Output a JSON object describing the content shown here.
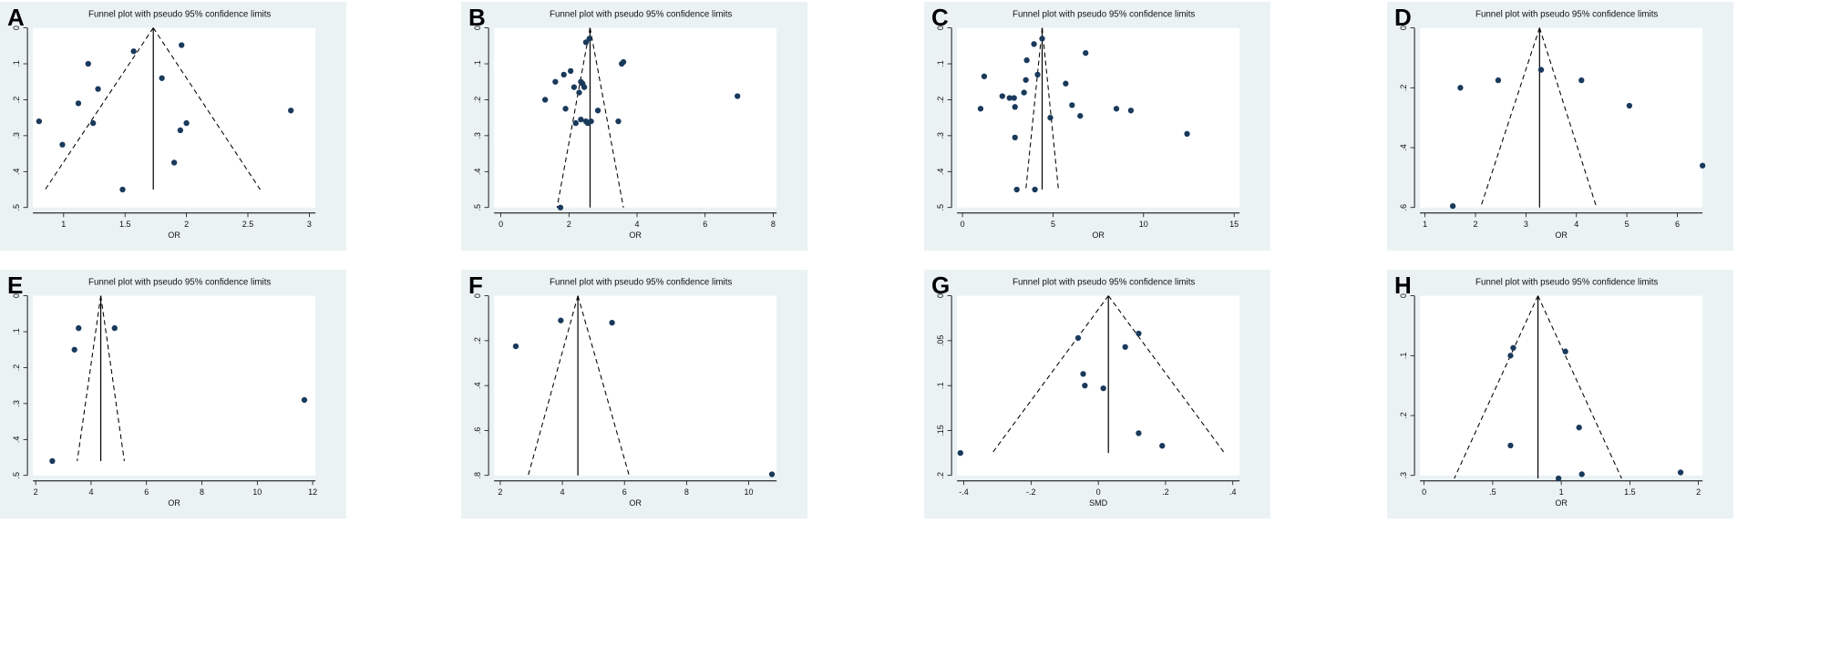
{
  "colors": {
    "panel_bg": "#eaf2f3",
    "plot_bg": "#ffffff",
    "point": "#1a3a5c",
    "line": "#000000"
  },
  "chart_data": [
    {
      "panel": "A",
      "type": "scatter",
      "title": "Funnel plot with pseudo 95% confidence limits",
      "xlabel": "OR",
      "ylabel": "",
      "xlim": [
        0.75,
        3.05
      ],
      "ylim": [
        0,
        0.5
      ],
      "y_inverted": true,
      "xticks": [
        "1",
        "1.5",
        "2",
        "2.5",
        "3"
      ],
      "xtick_values": [
        1,
        1.5,
        2,
        2.5,
        3
      ],
      "yticks": [
        "0",
        ".1",
        ".2",
        ".3",
        ".4",
        ".5"
      ],
      "ytick_values": [
        0,
        0.1,
        0.2,
        0.3,
        0.4,
        0.5
      ],
      "pooled": 1.73,
      "funnel_base_y": 0.45,
      "funnel_base_x": [
        0.85,
        2.6
      ],
      "points": [
        [
          0.8,
          0.26
        ],
        [
          0.99,
          0.325
        ],
        [
          1.12,
          0.21
        ],
        [
          1.2,
          0.1
        ],
        [
          1.24,
          0.265
        ],
        [
          1.28,
          0.17
        ],
        [
          1.48,
          0.45
        ],
        [
          1.57,
          0.065
        ],
        [
          1.8,
          0.14
        ],
        [
          1.9,
          0.375
        ],
        [
          1.95,
          0.285
        ],
        [
          1.96,
          0.048
        ],
        [
          2.0,
          0.265
        ],
        [
          2.85,
          0.23
        ]
      ]
    },
    {
      "panel": "B",
      "type": "scatter",
      "title": "Funnel plot with pseudo 95% confidence limits",
      "xlabel": "OR",
      "ylabel": "",
      "xlim": [
        -0.2,
        8.1
      ],
      "ylim": [
        0,
        0.5
      ],
      "y_inverted": true,
      "xticks": [
        "0",
        "2",
        "4",
        "6",
        "8"
      ],
      "xtick_values": [
        0,
        2,
        4,
        6,
        8
      ],
      "yticks": [
        "0",
        ".1",
        ".2",
        ".3",
        ".4",
        ".5"
      ],
      "ytick_values": [
        0,
        0.1,
        0.2,
        0.3,
        0.4,
        0.5
      ],
      "pooled": 2.62,
      "funnel_base_y": 0.5,
      "funnel_base_x": [
        1.65,
        3.6
      ],
      "points": [
        [
          1.3,
          0.2
        ],
        [
          1.6,
          0.15
        ],
        [
          1.75,
          0.5
        ],
        [
          1.85,
          0.13
        ],
        [
          1.9,
          0.225
        ],
        [
          2.05,
          0.12
        ],
        [
          2.15,
          0.165
        ],
        [
          2.2,
          0.265
        ],
        [
          2.3,
          0.18
        ],
        [
          2.35,
          0.15
        ],
        [
          2.35,
          0.255
        ],
        [
          2.4,
          0.155
        ],
        [
          2.45,
          0.165
        ],
        [
          2.5,
          0.04
        ],
        [
          2.5,
          0.26
        ],
        [
          2.55,
          0.265
        ],
        [
          2.6,
          0.03
        ],
        [
          2.65,
          0.26
        ],
        [
          2.85,
          0.23
        ],
        [
          3.45,
          0.26
        ],
        [
          3.55,
          0.1
        ],
        [
          3.6,
          0.095
        ],
        [
          6.95,
          0.19
        ]
      ]
    },
    {
      "panel": "C",
      "type": "scatter",
      "title": "Funnel plot with pseudo 95% confidence limits",
      "xlabel": "OR",
      "ylabel": "",
      "xlim": [
        -0.3,
        15.3
      ],
      "ylim": [
        0,
        0.5
      ],
      "y_inverted": true,
      "xticks": [
        "0",
        "5",
        "10",
        "15"
      ],
      "xtick_values": [
        0,
        5,
        10,
        15
      ],
      "yticks": [
        "0",
        ".1",
        ".2",
        ".3",
        ".4",
        ".5"
      ],
      "ytick_values": [
        0,
        0.1,
        0.2,
        0.3,
        0.4,
        0.5
      ],
      "pooled": 4.4,
      "funnel_base_y": 0.45,
      "funnel_base_x": [
        3.5,
        5.3
      ],
      "points": [
        [
          1.0,
          0.225
        ],
        [
          1.2,
          0.135
        ],
        [
          2.2,
          0.19
        ],
        [
          2.6,
          0.195
        ],
        [
          2.85,
          0.195
        ],
        [
          2.9,
          0.22
        ],
        [
          2.9,
          0.305
        ],
        [
          3.0,
          0.45
        ],
        [
          3.4,
          0.18
        ],
        [
          3.5,
          0.145
        ],
        [
          3.55,
          0.09
        ],
        [
          3.95,
          0.045
        ],
        [
          4.0,
          0.45
        ],
        [
          4.15,
          0.13
        ],
        [
          4.4,
          0.03
        ],
        [
          4.85,
          0.25
        ],
        [
          5.7,
          0.155
        ],
        [
          6.05,
          0.215
        ],
        [
          6.5,
          0.245
        ],
        [
          6.8,
          0.07
        ],
        [
          8.5,
          0.225
        ],
        [
          9.3,
          0.23
        ],
        [
          12.4,
          0.295
        ]
      ]
    },
    {
      "panel": "D",
      "type": "scatter",
      "title": "Funnel plot with pseudo 95% confidence limits",
      "xlabel": "OR",
      "ylabel": "",
      "xlim": [
        0.9,
        6.5
      ],
      "ylim": [
        0,
        0.6
      ],
      "y_inverted": true,
      "xticks": [
        "1",
        "2",
        "3",
        "4",
        "5",
        "6"
      ],
      "xtick_values": [
        1,
        2,
        3,
        4,
        5,
        6
      ],
      "yticks": [
        "0",
        ".2",
        ".4",
        ".6"
      ],
      "ytick_values": [
        0,
        0.2,
        0.4,
        0.6
      ],
      "pooled": 3.27,
      "funnel_base_y": 0.6,
      "funnel_base_x": [
        2.1,
        4.4
      ],
      "points": [
        [
          1.55,
          0.595
        ],
        [
          1.7,
          0.2
        ],
        [
          2.45,
          0.175
        ],
        [
          3.3,
          0.14
        ],
        [
          4.1,
          0.175
        ],
        [
          5.05,
          0.26
        ],
        [
          6.5,
          0.46
        ]
      ]
    },
    {
      "panel": "E",
      "type": "scatter",
      "title": "Funnel plot with pseudo 95% confidence limits",
      "xlabel": "OR",
      "ylabel": "",
      "xlim": [
        1.9,
        12.1
      ],
      "ylim": [
        0,
        0.5
      ],
      "y_inverted": true,
      "xticks": [
        "2",
        "4",
        "6",
        "8",
        "10",
        "12"
      ],
      "xtick_values": [
        2,
        4,
        6,
        8,
        10,
        12
      ],
      "yticks": [
        "0",
        ".1",
        ".2",
        ".3",
        ".4",
        ".5"
      ],
      "ytick_values": [
        0,
        0.1,
        0.2,
        0.3,
        0.4,
        0.5
      ],
      "pooled": 4.35,
      "funnel_base_y": 0.46,
      "funnel_base_x": [
        3.5,
        5.2
      ],
      "points": [
        [
          2.6,
          0.46
        ],
        [
          3.4,
          0.15
        ],
        [
          3.55,
          0.09
        ],
        [
          4.85,
          0.09
        ],
        [
          11.7,
          0.29
        ]
      ]
    },
    {
      "panel": "F",
      "type": "scatter",
      "title": "Funnel plot with pseudo 95% confidence limits",
      "xlabel": "OR",
      "ylabel": "",
      "xlim": [
        1.8,
        10.9
      ],
      "ylim": [
        0,
        0.8
      ],
      "y_inverted": true,
      "xticks": [
        "2",
        "4",
        "6",
        "8",
        "10"
      ],
      "xtick_values": [
        2,
        4,
        6,
        8,
        10
      ],
      "yticks": [
        "0",
        ".2",
        ".4",
        ".6",
        ".8"
      ],
      "ytick_values": [
        0,
        0.2,
        0.4,
        0.6,
        0.8
      ],
      "pooled": 4.5,
      "funnel_base_y": 0.8,
      "funnel_base_x": [
        2.9,
        6.15
      ],
      "points": [
        [
          2.5,
          0.225
        ],
        [
          3.95,
          0.11
        ],
        [
          5.6,
          0.12
        ],
        [
          10.75,
          0.795
        ]
      ]
    },
    {
      "panel": "G",
      "type": "scatter",
      "title": "Funnel plot with pseudo 95% confidence limits",
      "xlabel": "SMD",
      "ylabel": "",
      "xlim": [
        -0.42,
        0.42
      ],
      "ylim": [
        0,
        0.2
      ],
      "y_inverted": true,
      "xticks": [
        "-.4",
        "-.2",
        "0",
        ".2",
        ".4"
      ],
      "xtick_values": [
        -0.4,
        -0.2,
        0,
        0.2,
        0.4
      ],
      "yticks": [
        "0",
        ".05",
        ".1",
        ".15",
        ".2"
      ],
      "ytick_values": [
        0,
        0.05,
        0.1,
        0.15,
        0.2
      ],
      "pooled": 0.03,
      "funnel_base_y": 0.175,
      "funnel_base_x": [
        -0.315,
        0.375
      ],
      "points": [
        [
          -0.41,
          0.175
        ],
        [
          -0.06,
          0.047
        ],
        [
          -0.045,
          0.087
        ],
        [
          -0.04,
          0.1
        ],
        [
          0.015,
          0.103
        ],
        [
          0.08,
          0.057
        ],
        [
          0.12,
          0.042
        ],
        [
          0.12,
          0.153
        ],
        [
          0.19,
          0.167
        ]
      ]
    },
    {
      "panel": "H",
      "type": "scatter",
      "title": "Funnel plot with pseudo 95% confidence limits",
      "xlabel": "OR",
      "ylabel": "",
      "xlim": [
        -0.03,
        2.03
      ],
      "ylim": [
        0,
        0.3
      ],
      "y_inverted": true,
      "xticks": [
        "0",
        ".5",
        "1",
        "1.5",
        "2"
      ],
      "xtick_values": [
        0,
        0.5,
        1,
        1.5,
        2
      ],
      "yticks": [
        "0",
        ".1",
        ".2",
        ".3"
      ],
      "ytick_values": [
        0,
        0.1,
        0.2,
        0.3
      ],
      "pooled": 0.83,
      "funnel_base_y": 0.305,
      "funnel_base_x": [
        0.22,
        1.44
      ],
      "points": [
        [
          0.63,
          0.1
        ],
        [
          0.65,
          0.087
        ],
        [
          0.63,
          0.25
        ],
        [
          0.98,
          0.305
        ],
        [
          1.03,
          0.093
        ],
        [
          1.13,
          0.22
        ],
        [
          1.15,
          0.298
        ],
        [
          1.87,
          0.295
        ]
      ]
    }
  ]
}
